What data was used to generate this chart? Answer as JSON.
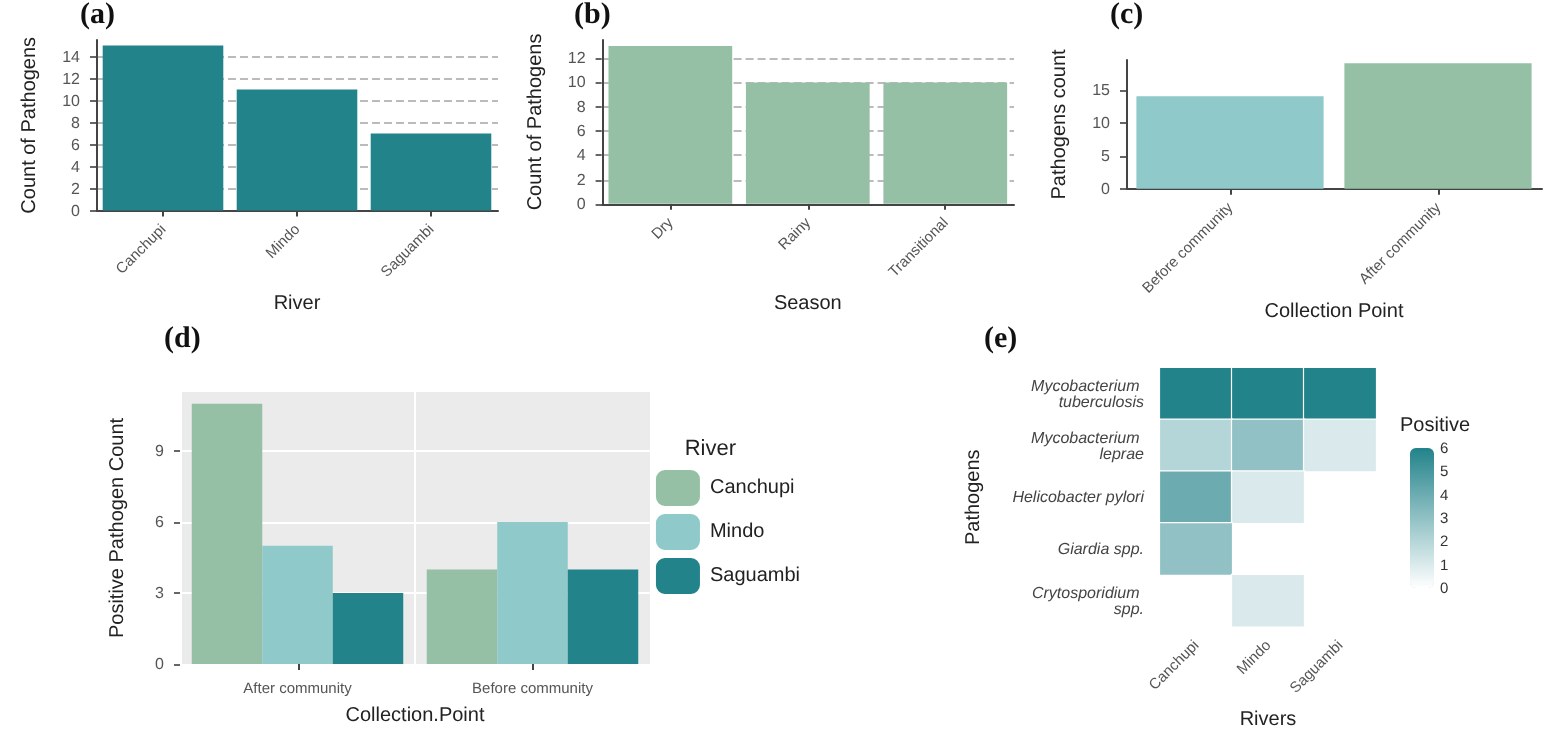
{
  "chart_data": [
    {
      "type": "bar",
      "title": "(a)",
      "xlabel": "River",
      "ylabel": "Count of Pathogens",
      "categories": [
        "Canchupi",
        "Mindo",
        "Saguambi"
      ],
      "values": [
        15,
        11,
        7
      ],
      "color": "#22838a",
      "ylim": [
        0,
        15.5
      ],
      "yticks": [
        0,
        2,
        4,
        6,
        8,
        10,
        12,
        14
      ],
      "grid": "y",
      "line_style": "dashed"
    },
    {
      "type": "bar",
      "title": "(b)",
      "xlabel": "Season",
      "ylabel": "Count of Pathogens",
      "categories": [
        "Dry",
        "Rainy",
        "Transitional"
      ],
      "values": [
        13,
        10,
        10
      ],
      "color": "#95c0a6",
      "ylim": [
        0,
        13.5
      ],
      "yticks": [
        0,
        2,
        4,
        6,
        8,
        10,
        12
      ],
      "grid": "y",
      "line_style": "dashed"
    },
    {
      "type": "bar",
      "title": "(c)",
      "xlabel": "Collection Point",
      "ylabel": "Pathogens count",
      "categories": [
        "Before community",
        "After community"
      ],
      "values": [
        14,
        19
      ],
      "colors": [
        "#8fc9c9",
        "#95c0a6"
      ],
      "ylim": [
        0,
        19.5
      ],
      "yticks": [
        0,
        5,
        10,
        15
      ]
    },
    {
      "type": "bar",
      "title": "(d)",
      "xlabel": "Collection.Point",
      "ylabel": "Positive Pathogen Count",
      "legend_title": "River",
      "legend": "right",
      "grid": true,
      "categories": [
        "After community",
        "Before community"
      ],
      "ylim": [
        0,
        11.5
      ],
      "yticks": [
        0,
        3,
        6,
        9
      ],
      "series": [
        {
          "name": "Canchupi",
          "color": "#95c0a6",
          "values": [
            11,
            4
          ]
        },
        {
          "name": "Mindo",
          "color": "#8fc9c9",
          "values": [
            5,
            6
          ]
        },
        {
          "name": "Saguambi",
          "color": "#22838a",
          "values": [
            3,
            4
          ]
        }
      ]
    },
    {
      "type": "heatmap",
      "title": "(e)",
      "xlabel": "Rivers",
      "ylabel": "Pathogens",
      "clabel": "Positive",
      "categories": [
        "Canchupi",
        "Mindo",
        "Saguambi"
      ],
      "y_categories": [
        "Mycobacterium tuberculosis",
        "Mycobacterium leprae",
        "Helicobacter pylori",
        "Giardia spp.",
        "Crytosporidium spp."
      ],
      "cells": [
        [
          6,
          6,
          6
        ],
        [
          2,
          3,
          1
        ],
        [
          4,
          1,
          null
        ],
        [
          3,
          null,
          null
        ],
        [
          null,
          1,
          null
        ]
      ],
      "clim": [
        0,
        6
      ],
      "cticks": [
        0,
        1,
        2,
        3,
        4,
        5,
        6
      ],
      "color": "#22838a"
    }
  ]
}
